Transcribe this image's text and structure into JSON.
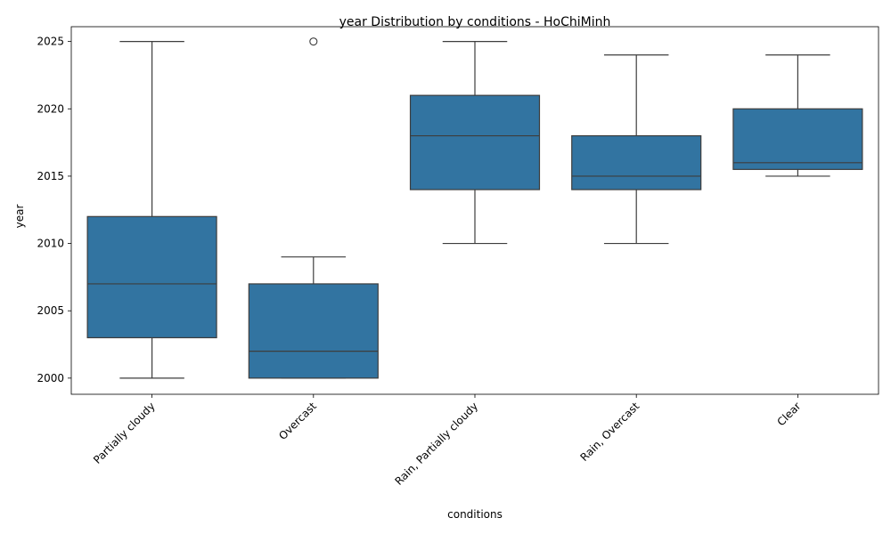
{
  "chart_data": {
    "type": "box",
    "title": "year Distribution by conditions - HoChiMinh",
    "xlabel": "conditions",
    "ylabel": "year",
    "ylim": [
      1998.8,
      2026.1
    ],
    "yticks": [
      2000,
      2005,
      2010,
      2015,
      2020,
      2025
    ],
    "grid": false,
    "box_color": "#3274a1",
    "line_color": "#3d3d3d",
    "categories": [
      "Partially cloudy",
      "Overcast",
      "Rain, Partially cloudy",
      "Rain, Overcast",
      "Clear"
    ],
    "boxes": [
      {
        "category": "Partially cloudy",
        "whisker_low": 2000,
        "q1": 2003,
        "median": 2007,
        "q3": 2012,
        "whisker_high": 2025,
        "outliers": []
      },
      {
        "category": "Overcast",
        "whisker_low": 2000,
        "q1": 2000,
        "median": 2002,
        "q3": 2007,
        "whisker_high": 2009,
        "outliers": [
          2025
        ]
      },
      {
        "category": "Rain, Partially cloudy",
        "whisker_low": 2010,
        "q1": 2014,
        "median": 2018,
        "q3": 2021,
        "whisker_high": 2025,
        "outliers": []
      },
      {
        "category": "Rain, Overcast",
        "whisker_low": 2010,
        "q1": 2014,
        "median": 2015,
        "q3": 2018,
        "whisker_high": 2024,
        "outliers": []
      },
      {
        "category": "Clear",
        "whisker_low": 2015,
        "q1": 2015.5,
        "median": 2016,
        "q3": 2020,
        "whisker_high": 2024,
        "outliers": []
      }
    ]
  }
}
